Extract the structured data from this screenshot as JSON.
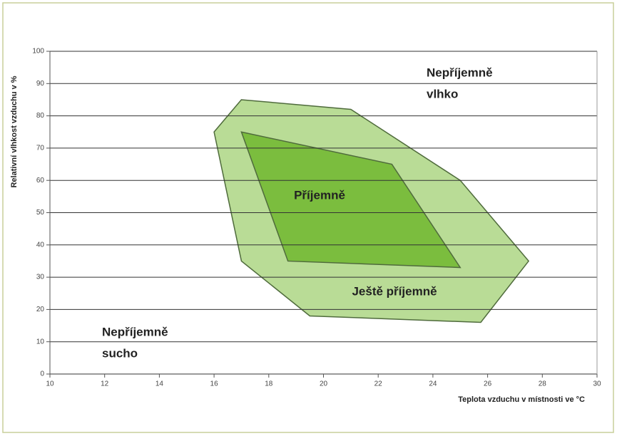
{
  "chart_data": {
    "type": "polygon",
    "x_label": "Teplota vzduchu v místnosti ve °C",
    "y_label": "Relativní vlhkost vzduchu v %",
    "xlim": [
      10,
      30
    ],
    "xticks": [
      10,
      12,
      14,
      16,
      18,
      20,
      22,
      24,
      26,
      28,
      30
    ],
    "ylim": [
      0,
      100
    ],
    "yticks": [
      0,
      10,
      20,
      30,
      40,
      50,
      60,
      70,
      80,
      90,
      100
    ],
    "grid": true,
    "series": [
      {
        "name": "Ještě příjemně",
        "color": "#b9dc96",
        "x": [
          17,
          21,
          25,
          27.5,
          25.75,
          19.5,
          17,
          16
        ],
        "values": [
          85,
          82,
          60,
          35,
          16,
          18,
          35,
          75
        ]
      },
      {
        "name": "Příjemně",
        "color": "#7bbd3e",
        "x": [
          17,
          22.5,
          25,
          18.7
        ],
        "values": [
          75,
          65,
          33,
          35
        ]
      }
    ],
    "annotations": [
      [
        "Nepříjemně",
        "vlhko"
      ],
      [
        "Nepříjemně",
        "sucho"
      ]
    ]
  }
}
